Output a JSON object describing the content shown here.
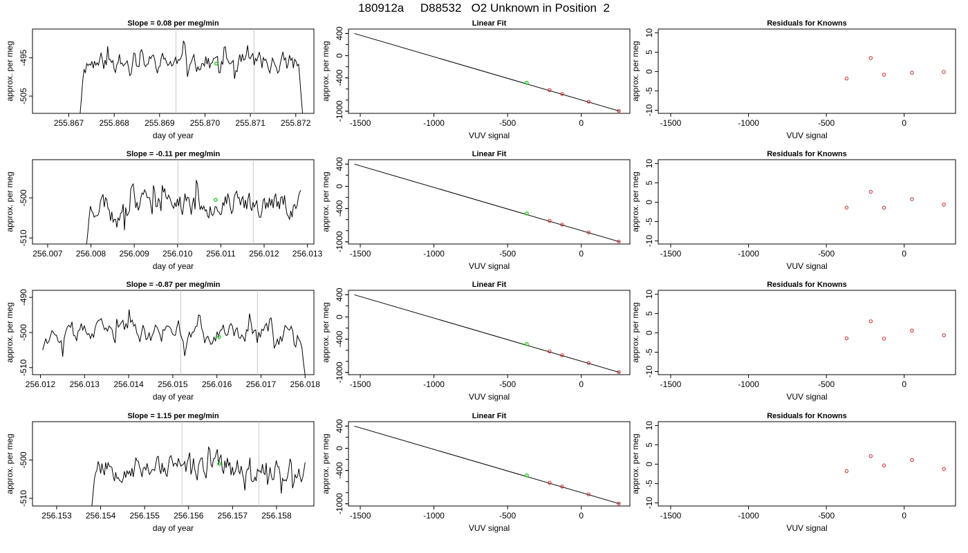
{
  "figure": {
    "title": "180912a     D88532   O2 Unknown in Position  2"
  },
  "colors": {
    "trace": "#000000",
    "marker_green": "#22cc22",
    "point_red": "#cc2222",
    "guide_gray": "#c8c8c8",
    "fit_line": "#000000"
  },
  "chart_data": [
    {
      "type": "line",
      "title": "Slope =  0.08  per meg/min",
      "xlabel": "day of year",
      "ylabel": "approx. per meg",
      "xlim": [
        255.8662,
        255.8724
      ],
      "ylim": [
        -509.5,
        -487.5
      ],
      "xticks": [
        "255.867",
        "255.868",
        "255.869",
        "255.870",
        "255.871",
        "255.872"
      ],
      "yticks": [
        "-495",
        "-505"
      ],
      "vlines": [
        255.86936,
        255.87108
      ],
      "marker": {
        "x": 255.87025,
        "y": -496.5
      },
      "trace": {
        "start": 255.86725,
        "end": 255.87215,
        "base": -496.3,
        "amp": 2.2,
        "drop_start": -510,
        "drop_end": -510,
        "seed": 11
      }
    },
    {
      "type": "scatter",
      "title": "Linear Fit",
      "xlabel": "VUV signal",
      "ylabel": "approx. per meg",
      "xlim": [
        -1580,
        330
      ],
      "ylim": [
        -1040,
        480
      ],
      "xticks": [
        "-1500",
        "-1000",
        "-500",
        "0"
      ],
      "yticks": [
        "400",
        "0",
        "-400",
        "-1000"
      ],
      "fit_line": {
        "x": [
          -1540,
          260
        ],
        "y": [
          400,
          -1000
        ]
      },
      "unknown": {
        "x": -370,
        "y": -490
      },
      "knowns": {
        "x": [
          -215,
          -130,
          50,
          255
        ],
        "y": [
          -620,
          -690,
          -830,
          -995
        ]
      }
    },
    {
      "type": "scatter",
      "title": "Residuals for Knowns",
      "xlabel": "VUV signal",
      "ylabel": "approx. per meg",
      "xlim": [
        -1580,
        330
      ],
      "ylim": [
        -10.8,
        11
      ],
      "xticks": [
        "-1500",
        "-1000",
        "-500",
        "0"
      ],
      "yticks": [
        "10",
        "5",
        "0",
        "-5",
        "-10"
      ],
      "x": [
        -370,
        -215,
        -130,
        50,
        255
      ],
      "y": [
        -1.8,
        3.5,
        -0.8,
        -0.3,
        -0.1
      ]
    },
    {
      "type": "line",
      "title": "Slope =  -0.11  per meg/min",
      "xlabel": "day of year",
      "ylabel": "approx. per meg",
      "xlim": [
        256.00665,
        256.01315
      ],
      "ylim": [
        -511.5,
        -490.5
      ],
      "xticks": [
        "256.007",
        "256.008",
        "256.009",
        "256.010",
        "256.011",
        "256.012",
        "256.013"
      ],
      "yticks": [
        "-500",
        "-510"
      ],
      "vlines": [
        256.01001,
        256.01175
      ],
      "marker": {
        "x": 256.01088,
        "y": -500.5
      },
      "trace": {
        "start": 256.0079,
        "end": 256.01285,
        "base": -501.3,
        "amp": 2.6,
        "drop_start": -512,
        "drop_end": null,
        "seed": 23
      }
    },
    {
      "type": "scatter",
      "title": "Linear Fit",
      "xlabel": "VUV signal",
      "ylabel": "approx. per meg",
      "xlim": [
        -1580,
        330
      ],
      "ylim": [
        -1040,
        480
      ],
      "xticks": [
        "-1500",
        "-1000",
        "-500",
        "0"
      ],
      "yticks": [
        "400",
        "0",
        "-400",
        "-1000"
      ],
      "fit_line": {
        "x": [
          -1540,
          260
        ],
        "y": [
          400,
          -1000
        ]
      },
      "unknown": {
        "x": -370,
        "y": -490
      },
      "knowns": {
        "x": [
          -215,
          -130,
          50,
          255
        ],
        "y": [
          -620,
          -690,
          -830,
          -995
        ]
      }
    },
    {
      "type": "scatter",
      "title": "Residuals for Knowns",
      "xlabel": "VUV signal",
      "ylabel": "approx. per meg",
      "xlim": [
        -1580,
        330
      ],
      "ylim": [
        -10.8,
        11
      ],
      "xticks": [
        "-1500",
        "-1000",
        "-500",
        "0"
      ],
      "yticks": [
        "10",
        "5",
        "0",
        "-5",
        "-10"
      ],
      "x": [
        -370,
        -215,
        -130,
        50,
        255
      ],
      "y": [
        -1.4,
        2.7,
        -1.4,
        0.8,
        -0.6
      ]
    },
    {
      "type": "line",
      "title": "Slope =  -0.87  per meg/min",
      "xlabel": "day of year",
      "ylabel": "approx. per meg",
      "xlim": [
        256.01182,
        256.0182
      ],
      "ylim": [
        -512,
        -488
      ],
      "xticks": [
        "256.012",
        "256.013",
        "256.014",
        "256.015",
        "256.016",
        "256.017",
        "256.018"
      ],
      "yticks": [
        "-490",
        "-500",
        "-510"
      ],
      "vlines": [
        256.01518,
        256.01692
      ],
      "marker": {
        "x": 256.01605,
        "y": -501.3
      },
      "trace": {
        "start": 256.01205,
        "end": 256.018,
        "base": -500.2,
        "amp": 2.4,
        "drop_start": -505,
        "drop_end": -513,
        "seed": 37
      }
    },
    {
      "type": "scatter",
      "title": "Linear Fit",
      "xlabel": "VUV signal",
      "ylabel": "approx. per meg",
      "xlim": [
        -1580,
        330
      ],
      "ylim": [
        -1040,
        480
      ],
      "xticks": [
        "-1500",
        "-1000",
        "-500",
        "0"
      ],
      "yticks": [
        "400",
        "0",
        "-400",
        "-1000"
      ],
      "fit_line": {
        "x": [
          -1540,
          260
        ],
        "y": [
          400,
          -1000
        ]
      },
      "unknown": {
        "x": -370,
        "y": -490
      },
      "knowns": {
        "x": [
          -215,
          -130,
          50,
          255
        ],
        "y": [
          -620,
          -690,
          -830,
          -995
        ]
      }
    },
    {
      "type": "scatter",
      "title": "Residuals for Knowns",
      "xlabel": "VUV signal",
      "ylabel": "approx. per meg",
      "xlim": [
        -1580,
        330
      ],
      "ylim": [
        -10.8,
        11
      ],
      "xticks": [
        "-1500",
        "-1000",
        "-500",
        "0"
      ],
      "yticks": [
        "10",
        "5",
        "0",
        "-5",
        "-10"
      ],
      "x": [
        -370,
        -215,
        -130,
        50,
        255
      ],
      "y": [
        -1.4,
        3.0,
        -1.5,
        0.6,
        -0.6
      ]
    },
    {
      "type": "line",
      "title": "Slope =  1.15  per meg/min",
      "xlabel": "day of year",
      "ylabel": "approx. per meg",
      "xlim": [
        256.15245,
        256.15885
      ],
      "ylim": [
        -512,
        -490
      ],
      "xticks": [
        "256.153",
        "256.154",
        "256.155",
        "256.156",
        "256.157",
        "256.158"
      ],
      "yticks": [
        "-500",
        "-510"
      ],
      "vlines": [
        256.15585,
        256.1576
      ],
      "marker": {
        "x": 256.1567,
        "y": -501
      },
      "trace": {
        "start": 256.1538,
        "end": 256.15865,
        "base": -501.5,
        "amp": 2.6,
        "drop_start": -512,
        "drop_end": null,
        "seed": 53
      }
    },
    {
      "type": "scatter",
      "title": "Linear Fit",
      "xlabel": "VUV signal",
      "ylabel": "approx. per meg",
      "xlim": [
        -1580,
        330
      ],
      "ylim": [
        -1040,
        480
      ],
      "xticks": [
        "-1500",
        "-1000",
        "-500",
        "0"
      ],
      "yticks": [
        "400",
        "0",
        "-400",
        "-1000"
      ],
      "fit_line": {
        "x": [
          -1540,
          260
        ],
        "y": [
          400,
          -1000
        ]
      },
      "unknown": {
        "x": -370,
        "y": -490
      },
      "knowns": {
        "x": [
          -215,
          -130,
          50,
          255
        ],
        "y": [
          -620,
          -690,
          -830,
          -995
        ]
      }
    },
    {
      "type": "scatter",
      "title": "Residuals for Knowns",
      "xlabel": "VUV signal",
      "ylabel": "approx. per meg",
      "xlim": [
        -1580,
        330
      ],
      "ylim": [
        -10.8,
        11
      ],
      "xticks": [
        "-1500",
        "-1000",
        "-500",
        "0"
      ],
      "yticks": [
        "10",
        "5",
        "0",
        "-5",
        "-10"
      ],
      "x": [
        -370,
        -215,
        -130,
        50,
        255
      ],
      "y": [
        -1.8,
        2.1,
        -0.3,
        1.1,
        -1.2
      ]
    }
  ]
}
